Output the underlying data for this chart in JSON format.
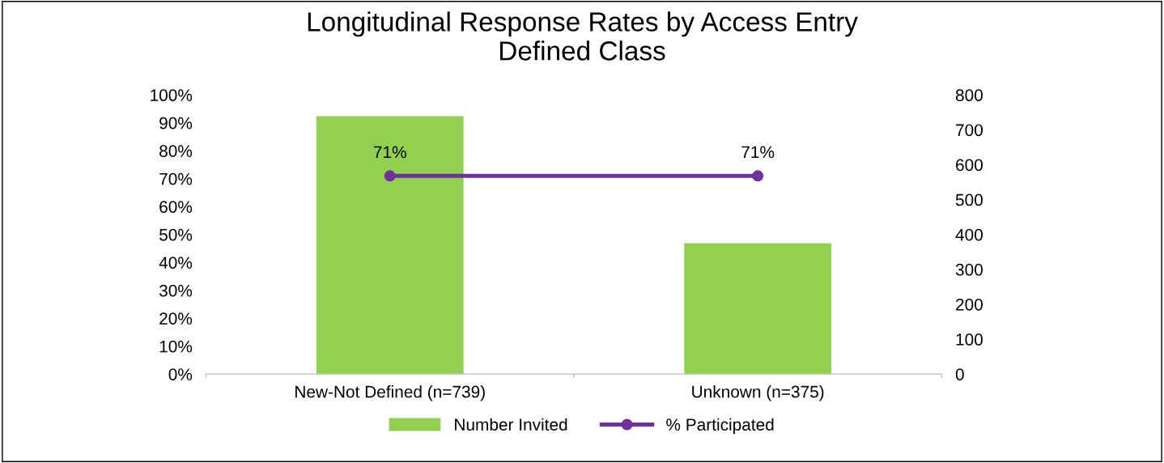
{
  "chart_data": {
    "type": "bar",
    "title": "Longitudinal Response Rates by Access Entry\nDefined Class",
    "categories": [
      "New-Not Defined (n=739)",
      "Unknown (n=375)"
    ],
    "series": [
      {
        "name": "Number Invited",
        "axis": "y2",
        "color": "#92d050",
        "values": [
          739,
          375
        ]
      },
      {
        "name": "% Participated",
        "type": "line",
        "color": "#7030a0",
        "values": [
          71,
          71
        ],
        "value_labels": [
          "71%",
          "71%"
        ],
        "marker": "circle"
      }
    ],
    "ylim": [
      0,
      100
    ],
    "yticks": [
      {
        "value": 0,
        "label": "0%"
      },
      {
        "value": 10,
        "label": "10%"
      },
      {
        "value": 20,
        "label": "20%"
      },
      {
        "value": 30,
        "label": "30%"
      },
      {
        "value": 40,
        "label": "40%"
      },
      {
        "value": 50,
        "label": "50%"
      },
      {
        "value": 60,
        "label": "60%"
      },
      {
        "value": 70,
        "label": "70%"
      },
      {
        "value": 80,
        "label": "80%"
      },
      {
        "value": 90,
        "label": "90%"
      },
      {
        "value": 100,
        "label": "100%"
      }
    ],
    "y2lim": [
      0,
      800
    ],
    "y2ticks": [
      0,
      100,
      200,
      300,
      400,
      500,
      600,
      700,
      800
    ],
    "grid": false,
    "legend": "bottom"
  }
}
